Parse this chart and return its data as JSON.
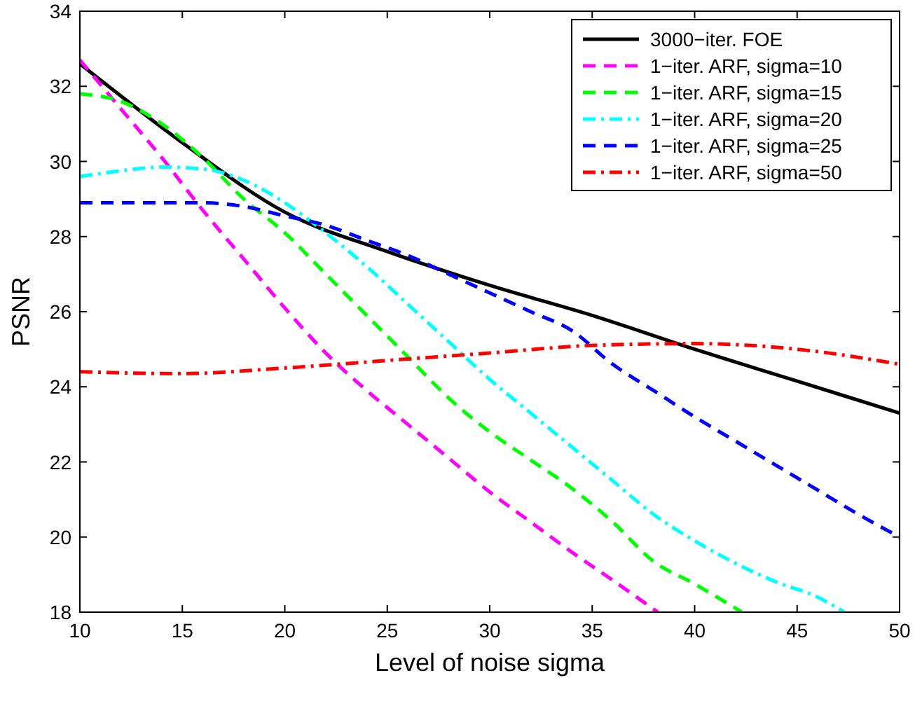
{
  "chart_data": {
    "type": "line",
    "xlabel": "Level of noise sigma",
    "ylabel": "PSNR",
    "xlim": [
      10,
      50
    ],
    "ylim": [
      18,
      34
    ],
    "xticks": [
      10,
      15,
      20,
      25,
      30,
      35,
      40,
      45,
      50
    ],
    "yticks": [
      18,
      20,
      22,
      24,
      26,
      28,
      30,
      32,
      34
    ],
    "grid": false,
    "legend": "top right",
    "marker": "none",
    "series": [
      {
        "name": "3000−iter. FOE",
        "color": "#000000",
        "line_style": "solid",
        "x": [
          10,
          15,
          20,
          25,
          30,
          35,
          40,
          45,
          50
        ],
        "values": [
          32.6,
          30.5,
          28.65,
          27.6,
          26.7,
          25.9,
          25.0,
          24.15,
          23.3
        ]
      },
      {
        "name": "1−iter. ARF, sigma=10",
        "color": "#ff00ff",
        "line_style": "dashed",
        "x": [
          10,
          12,
          14,
          16,
          18,
          20,
          22,
          24,
          26,
          28,
          30,
          32,
          34,
          36,
          38.2
        ],
        "values": [
          32.7,
          31.4,
          30.1,
          28.7,
          27.4,
          26.1,
          24.9,
          23.9,
          23.0,
          22.1,
          21.2,
          20.4,
          19.6,
          18.85,
          18
        ]
      },
      {
        "name": "1−iter. ARF, sigma=15",
        "color": "#00ff00",
        "line_style": "dashed",
        "x": [
          10,
          12,
          14,
          16,
          18,
          20,
          22,
          24,
          26,
          28,
          30,
          32,
          34,
          36,
          38,
          40,
          42.3
        ],
        "values": [
          31.8,
          31.6,
          31.0,
          30.1,
          29.0,
          28.1,
          27.0,
          25.9,
          24.8,
          23.7,
          22.8,
          22.05,
          21.3,
          20.4,
          19.35,
          18.75,
          18
        ]
      },
      {
        "name": "1−iter. ARF, sigma=20",
        "color": "#00ffff",
        "line_style": "dashdot",
        "x": [
          10,
          12,
          14,
          16,
          18,
          20,
          22,
          24,
          26,
          28,
          30,
          32,
          34,
          36,
          38,
          40,
          42,
          44,
          46,
          47.3
        ],
        "values": [
          29.6,
          29.75,
          29.85,
          29.8,
          29.5,
          28.9,
          28.1,
          27.2,
          26.2,
          25.2,
          24.2,
          23.3,
          22.4,
          21.5,
          20.6,
          19.9,
          19.3,
          18.8,
          18.4,
          18
        ]
      },
      {
        "name": "1−iter. ARF, sigma=25",
        "color": "#0000ff",
        "line_style": "dashed",
        "x": [
          10,
          14,
          16,
          18,
          20,
          22,
          24,
          26,
          28,
          30,
          32,
          34,
          36,
          38,
          40,
          42,
          44,
          46,
          48,
          50
        ],
        "values": [
          28.9,
          28.9,
          28.9,
          28.8,
          28.55,
          28.3,
          27.9,
          27.5,
          27.0,
          26.5,
          26.0,
          25.5,
          24.6,
          23.9,
          23.2,
          22.55,
          21.9,
          21.25,
          20.6,
          20.0
        ]
      },
      {
        "name": "1−iter. ARF, sigma=50",
        "color": "#ff0000",
        "line_style": "dashdot",
        "x": [
          10,
          15,
          20,
          25,
          30,
          35,
          40,
          45,
          50
        ],
        "values": [
          24.4,
          24.35,
          24.5,
          24.7,
          24.9,
          25.1,
          25.15,
          25.0,
          24.6
        ]
      }
    ]
  }
}
